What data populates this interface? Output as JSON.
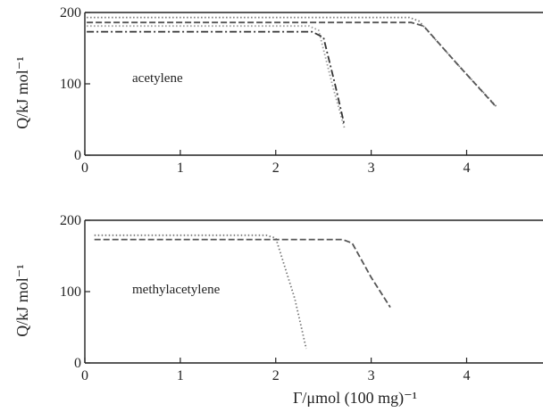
{
  "chart_data": [
    {
      "type": "line",
      "annotation": "acetylene",
      "ylabel": "Q/kJ mol⁻¹",
      "xlabel": "",
      "xlim": [
        0,
        4.8
      ],
      "ylim": [
        0,
        200
      ],
      "xticks": [
        0,
        1,
        2,
        3,
        4
      ],
      "yticks": [
        0,
        100,
        200
      ],
      "grid": false,
      "series": [
        {
          "style": "dotted",
          "color": "#777777",
          "x": [
            0.02,
            3.4,
            3.5,
            3.9,
            4.32
          ],
          "y": [
            193,
            193,
            188,
            128,
            67
          ]
        },
        {
          "style": "dashed",
          "color": "#555555",
          "x": [
            0.02,
            3.42,
            3.55,
            3.9,
            4.3
          ],
          "y": [
            186,
            186,
            181,
            128,
            69
          ]
        },
        {
          "style": "dotted",
          "color": "#999999",
          "x": [
            0.02,
            2.35,
            2.45,
            2.6,
            2.72
          ],
          "y": [
            181,
            181,
            175,
            95,
            38
          ]
        },
        {
          "style": "dashdot",
          "color": "#333333",
          "x": [
            0.02,
            2.38,
            2.5,
            2.62,
            2.72
          ],
          "y": [
            173,
            173,
            165,
            100,
            42
          ]
        }
      ]
    },
    {
      "type": "line",
      "annotation": "methylacetylene",
      "ylabel": "Q/kJ mol⁻¹",
      "xlabel": "Γ/μmol (100 mg)⁻¹",
      "xlim": [
        0,
        4.8
      ],
      "ylim": [
        0,
        200
      ],
      "xticks": [
        0,
        1,
        2,
        3,
        4
      ],
      "yticks": [
        0,
        100,
        200
      ],
      "grid": false,
      "series": [
        {
          "style": "dotted",
          "color": "#777777",
          "x": [
            0.1,
            1.9,
            2.0,
            2.2,
            2.32
          ],
          "y": [
            179,
            179,
            175,
            90,
            20
          ]
        },
        {
          "style": "dashed",
          "color": "#555555",
          "x": [
            0.1,
            2.7,
            2.8,
            3.0,
            3.2
          ],
          "y": [
            173,
            173,
            168,
            120,
            78
          ]
        }
      ]
    }
  ]
}
